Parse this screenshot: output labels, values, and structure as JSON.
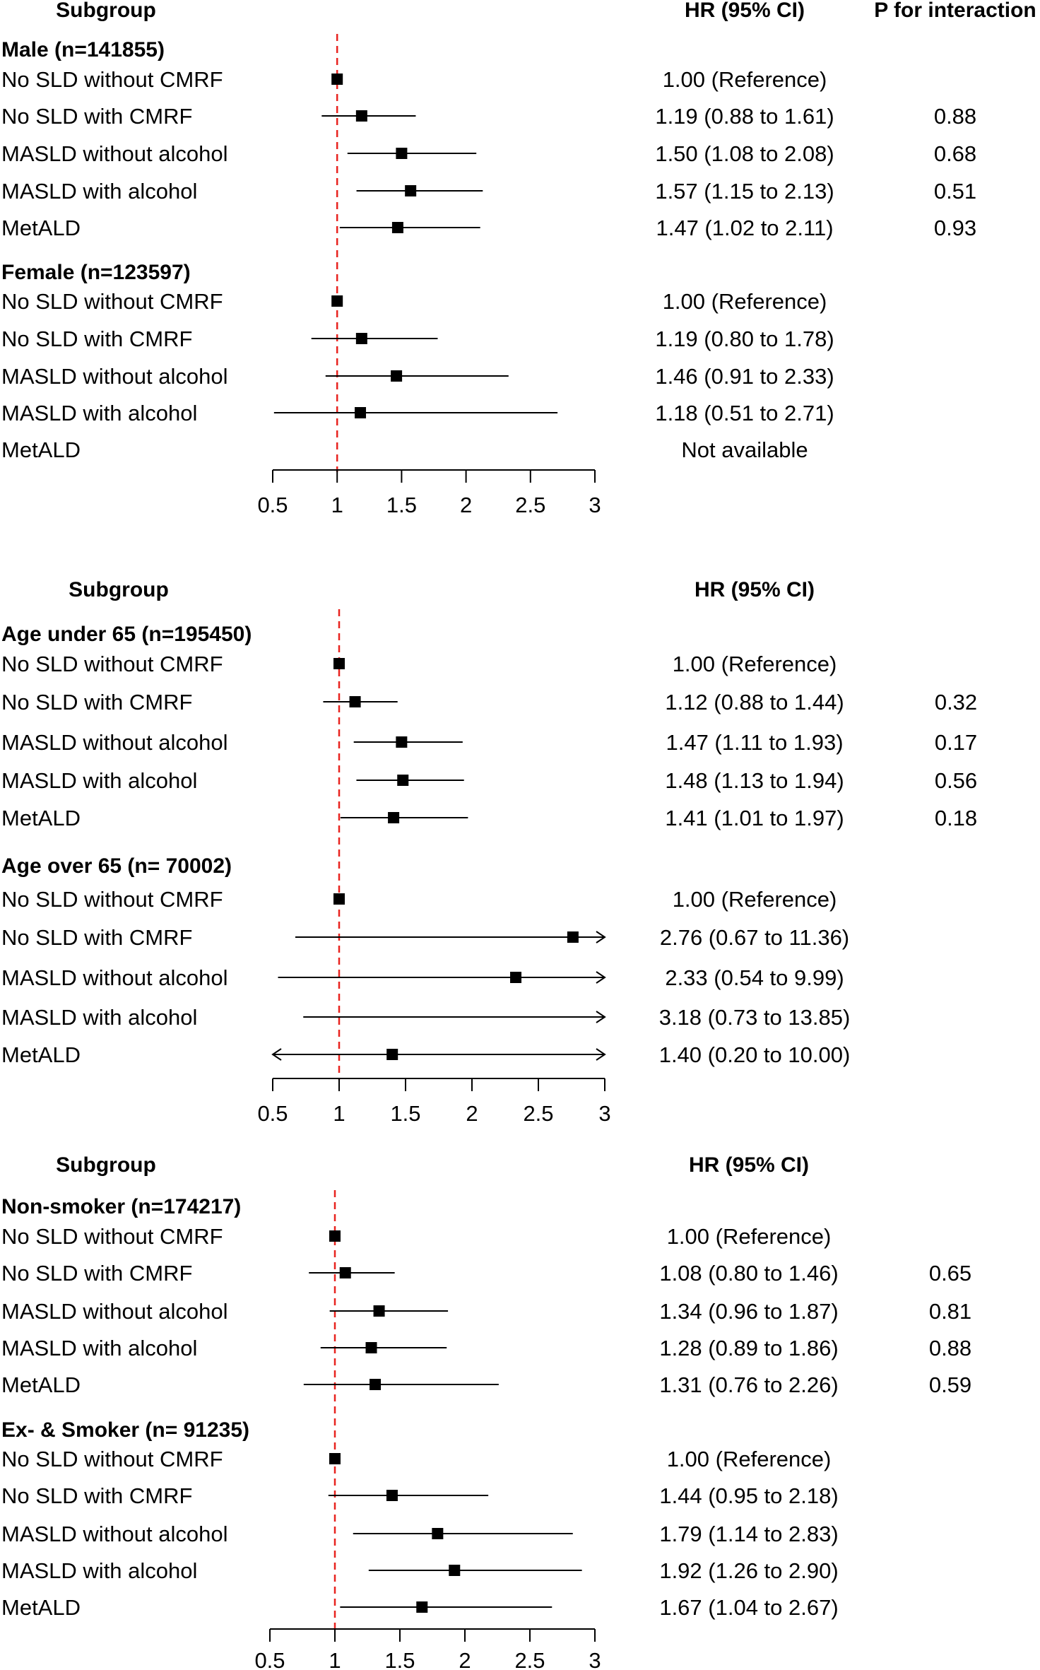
{
  "chart_data": [
    {
      "type": "forest",
      "title": "",
      "headers": {
        "subgroup": "Subgroup",
        "hr": "HR (95% CI)",
        "p": "P for interaction"
      },
      "xlim": [
        0.5,
        3
      ],
      "ticks": [
        "0.5",
        "1",
        "1.5",
        "2",
        "2.5",
        "3"
      ],
      "reference_line": 1,
      "groups": [
        {
          "label": "Male (n=141855)",
          "rows": [
            {
              "label": "No SLD without CMRF",
              "hr": 1.0,
              "lo": null,
              "hi": null,
              "text": "1.00 (Reference)",
              "p": ""
            },
            {
              "label": "No SLD with CMRF",
              "hr": 1.19,
              "lo": 0.88,
              "hi": 1.61,
              "text": "1.19 (0.88 to 1.61)",
              "p": "0.88"
            },
            {
              "label": "MASLD without alcohol",
              "hr": 1.5,
              "lo": 1.08,
              "hi": 2.08,
              "text": "1.50 (1.08 to 2.08)",
              "p": "0.68"
            },
            {
              "label": "MASLD with alcohol",
              "hr": 1.57,
              "lo": 1.15,
              "hi": 2.13,
              "text": "1.57 (1.15 to 2.13)",
              "p": "0.51"
            },
            {
              "label": "MetALD",
              "hr": 1.47,
              "lo": 1.02,
              "hi": 2.11,
              "text": "1.47 (1.02 to 2.11)",
              "p": "0.93"
            }
          ]
        },
        {
          "label": "Female (n=123597)",
          "rows": [
            {
              "label": "No SLD without CMRF",
              "hr": 1.0,
              "lo": null,
              "hi": null,
              "text": "1.00 (Reference)",
              "p": ""
            },
            {
              "label": "No SLD with CMRF",
              "hr": 1.19,
              "lo": 0.8,
              "hi": 1.78,
              "text": "1.19 (0.80 to 1.78)",
              "p": ""
            },
            {
              "label": "MASLD without alcohol",
              "hr": 1.46,
              "lo": 0.91,
              "hi": 2.33,
              "text": "1.46 (0.91 to 2.33)",
              "p": ""
            },
            {
              "label": "MASLD with alcohol",
              "hr": 1.18,
              "lo": 0.51,
              "hi": 2.71,
              "text": "1.18 (0.51 to 2.71)",
              "p": ""
            },
            {
              "label": "MetALD",
              "hr": null,
              "lo": null,
              "hi": null,
              "text": "Not available",
              "p": ""
            }
          ]
        }
      ]
    },
    {
      "type": "forest",
      "title": "",
      "headers": {
        "subgroup": "Subgroup",
        "hr": "HR (95% CI)",
        "p": ""
      },
      "xlim": [
        0.5,
        3
      ],
      "ticks": [
        "0.5",
        "1",
        "1.5",
        "2",
        "2.5",
        "3"
      ],
      "reference_line": 1,
      "groups": [
        {
          "label": "Age under 65 (n=195450)",
          "rows": [
            {
              "label": "No SLD without CMRF",
              "hr": 1.0,
              "lo": null,
              "hi": null,
              "text": "1.00 (Reference)",
              "p": ""
            },
            {
              "label": "No SLD with CMRF",
              "hr": 1.12,
              "lo": 0.88,
              "hi": 1.44,
              "text": "1.12 (0.88 to 1.44)",
              "p": "0.32"
            },
            {
              "label": "MASLD without alcohol",
              "hr": 1.47,
              "lo": 1.11,
              "hi": 1.93,
              "text": "1.47 (1.11 to 1.93)",
              "p": "0.17"
            },
            {
              "label": "MASLD with alcohol",
              "hr": 1.48,
              "lo": 1.13,
              "hi": 1.94,
              "text": "1.48 (1.13 to 1.94)",
              "p": "0.56"
            },
            {
              "label": "MetALD",
              "hr": 1.41,
              "lo": 1.01,
              "hi": 1.97,
              "text": "1.41 (1.01 to 1.97)",
              "p": "0.18"
            }
          ]
        },
        {
          "label": "Age over 65 (n= 70002)",
          "rows": [
            {
              "label": "No SLD without CMRF",
              "hr": 1.0,
              "lo": null,
              "hi": null,
              "text": "1.00 (Reference)",
              "p": ""
            },
            {
              "label": "No SLD with CMRF",
              "hr": 2.76,
              "lo": 0.67,
              "hi": 11.36,
              "text": "2.76 (0.67 to 11.36)",
              "p": ""
            },
            {
              "label": "MASLD without alcohol",
              "hr": 2.33,
              "lo": 0.54,
              "hi": 9.99,
              "text": "2.33 (0.54 to 9.99)",
              "p": ""
            },
            {
              "label": "MASLD with alcohol",
              "hr": 3.18,
              "lo": 0.73,
              "hi": 13.85,
              "text": "3.18 (0.73 to 13.85)",
              "p": ""
            },
            {
              "label": "MetALD",
              "hr": 1.4,
              "lo": 0.2,
              "hi": 10.0,
              "text": "1.40 (0.20 to 10.00)",
              "p": ""
            }
          ]
        }
      ]
    },
    {
      "type": "forest",
      "title": "",
      "headers": {
        "subgroup": "Subgroup",
        "hr": "HR (95% CI)",
        "p": ""
      },
      "xlim": [
        0.5,
        3
      ],
      "ticks": [
        "0.5",
        "1",
        "1.5",
        "2",
        "2.5",
        "3"
      ],
      "reference_line": 1,
      "groups": [
        {
          "label": "Non-smoker (n=174217)",
          "rows": [
            {
              "label": "No SLD without CMRF",
              "hr": 1.0,
              "lo": null,
              "hi": null,
              "text": "1.00 (Reference)",
              "p": ""
            },
            {
              "label": "No SLD with CMRF",
              "hr": 1.08,
              "lo": 0.8,
              "hi": 1.46,
              "text": "1.08 (0.80 to 1.46)",
              "p": "0.65"
            },
            {
              "label": "MASLD without alcohol",
              "hr": 1.34,
              "lo": 0.96,
              "hi": 1.87,
              "text": "1.34 (0.96 to 1.87)",
              "p": "0.81"
            },
            {
              "label": "MASLD with alcohol",
              "hr": 1.28,
              "lo": 0.89,
              "hi": 1.86,
              "text": "1.28 (0.89 to 1.86)",
              "p": "0.88"
            },
            {
              "label": "MetALD",
              "hr": 1.31,
              "lo": 0.76,
              "hi": 2.26,
              "text": "1.31 (0.76 to 2.26)",
              "p": "0.59"
            }
          ]
        },
        {
          "label": "Ex- & Smoker (n= 91235)",
          "rows": [
            {
              "label": "No SLD without CMRF",
              "hr": 1.0,
              "lo": null,
              "hi": null,
              "text": "1.00 (Reference)",
              "p": ""
            },
            {
              "label": "No SLD with CMRF",
              "hr": 1.44,
              "lo": 0.95,
              "hi": 2.18,
              "text": "1.44 (0.95 to 2.18)",
              "p": ""
            },
            {
              "label": "MASLD without alcohol",
              "hr": 1.79,
              "lo": 1.14,
              "hi": 2.83,
              "text": "1.79 (1.14 to 2.83)",
              "p": ""
            },
            {
              "label": "MASLD with alcohol",
              "hr": 1.92,
              "lo": 1.26,
              "hi": 2.9,
              "text": "1.92 (1.26 to 2.90)",
              "p": ""
            },
            {
              "label": "MetALD",
              "hr": 1.67,
              "lo": 1.04,
              "hi": 2.67,
              "text": "1.67 (1.04 to 2.67)",
              "p": ""
            }
          ]
        }
      ]
    }
  ],
  "colors": {
    "reference_line": "#e8231f",
    "marker": "#000000"
  }
}
